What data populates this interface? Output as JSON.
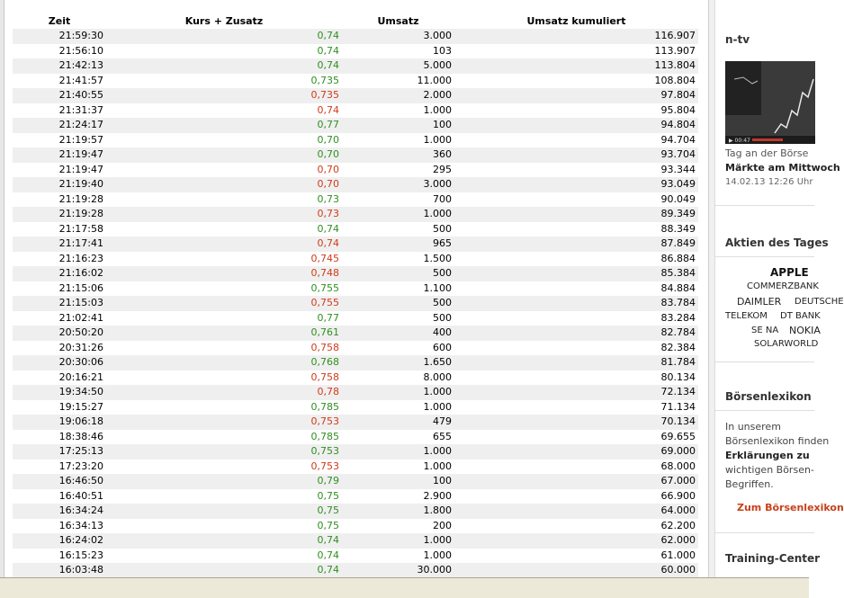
{
  "table": {
    "headers": [
      "Zeit",
      "Kurs + Zusatz",
      "Umsatz",
      "Umsatz kumuliert"
    ],
    "rows": [
      {
        "time": "21:59:30",
        "price": "0,74",
        "dir": "up",
        "volume": "3.000",
        "cumulative": "116.907"
      },
      {
        "time": "21:56:10",
        "price": "0,74",
        "dir": "up",
        "volume": "103",
        "cumulative": "113.907"
      },
      {
        "time": "21:42:13",
        "price": "0,74",
        "dir": "up",
        "volume": "5.000",
        "cumulative": "113.804"
      },
      {
        "time": "21:41:57",
        "price": "0,735",
        "dir": "up",
        "volume": "11.000",
        "cumulative": "108.804"
      },
      {
        "time": "21:40:55",
        "price": "0,735",
        "dir": "down",
        "volume": "2.000",
        "cumulative": "97.804"
      },
      {
        "time": "21:31:37",
        "price": "0,74",
        "dir": "down",
        "volume": "1.000",
        "cumulative": "95.804"
      },
      {
        "time": "21:24:17",
        "price": "0,77",
        "dir": "up",
        "volume": "100",
        "cumulative": "94.804"
      },
      {
        "time": "21:19:57",
        "price": "0,70",
        "dir": "up",
        "volume": "1.000",
        "cumulative": "94.704"
      },
      {
        "time": "21:19:47",
        "price": "0,70",
        "dir": "up",
        "volume": "360",
        "cumulative": "93.704"
      },
      {
        "time": "21:19:47",
        "price": "0,70",
        "dir": "down",
        "volume": "295",
        "cumulative": "93.344"
      },
      {
        "time": "21:19:40",
        "price": "0,70",
        "dir": "down",
        "volume": "3.000",
        "cumulative": "93.049"
      },
      {
        "time": "21:19:28",
        "price": "0,73",
        "dir": "up",
        "volume": "700",
        "cumulative": "90.049"
      },
      {
        "time": "21:19:28",
        "price": "0,73",
        "dir": "down",
        "volume": "1.000",
        "cumulative": "89.349"
      },
      {
        "time": "21:17:58",
        "price": "0,74",
        "dir": "up",
        "volume": "500",
        "cumulative": "88.349"
      },
      {
        "time": "21:17:41",
        "price": "0,74",
        "dir": "down",
        "volume": "965",
        "cumulative": "87.849"
      },
      {
        "time": "21:16:23",
        "price": "0,745",
        "dir": "down",
        "volume": "1.500",
        "cumulative": "86.884"
      },
      {
        "time": "21:16:02",
        "price": "0,748",
        "dir": "down",
        "volume": "500",
        "cumulative": "85.384"
      },
      {
        "time": "21:15:06",
        "price": "0,755",
        "dir": "up",
        "volume": "1.100",
        "cumulative": "84.884"
      },
      {
        "time": "21:15:03",
        "price": "0,755",
        "dir": "down",
        "volume": "500",
        "cumulative": "83.784"
      },
      {
        "time": "21:02:41",
        "price": "0,77",
        "dir": "up",
        "volume": "500",
        "cumulative": "83.284"
      },
      {
        "time": "20:50:20",
        "price": "0,761",
        "dir": "up",
        "volume": "400",
        "cumulative": "82.784"
      },
      {
        "time": "20:31:26",
        "price": "0,758",
        "dir": "down",
        "volume": "600",
        "cumulative": "82.384"
      },
      {
        "time": "20:30:06",
        "price": "0,768",
        "dir": "up",
        "volume": "1.650",
        "cumulative": "81.784"
      },
      {
        "time": "20:16:21",
        "price": "0,758",
        "dir": "down",
        "volume": "8.000",
        "cumulative": "80.134"
      },
      {
        "time": "19:34:50",
        "price": "0,78",
        "dir": "down",
        "volume": "1.000",
        "cumulative": "72.134"
      },
      {
        "time": "19:15:27",
        "price": "0,785",
        "dir": "up",
        "volume": "1.000",
        "cumulative": "71.134"
      },
      {
        "time": "19:06:18",
        "price": "0,753",
        "dir": "down",
        "volume": "479",
        "cumulative": "70.134"
      },
      {
        "time": "18:38:46",
        "price": "0,785",
        "dir": "up",
        "volume": "655",
        "cumulative": "69.655"
      },
      {
        "time": "17:25:13",
        "price": "0,753",
        "dir": "up",
        "volume": "1.000",
        "cumulative": "69.000"
      },
      {
        "time": "17:23:20",
        "price": "0,753",
        "dir": "down",
        "volume": "1.000",
        "cumulative": "68.000"
      },
      {
        "time": "16:46:50",
        "price": "0,79",
        "dir": "up",
        "volume": "100",
        "cumulative": "67.000"
      },
      {
        "time": "16:40:51",
        "price": "0,75",
        "dir": "up",
        "volume": "2.900",
        "cumulative": "66.900"
      },
      {
        "time": "16:34:24",
        "price": "0,75",
        "dir": "up",
        "volume": "1.800",
        "cumulative": "64.000"
      },
      {
        "time": "16:34:13",
        "price": "0,75",
        "dir": "up",
        "volume": "200",
        "cumulative": "62.200"
      },
      {
        "time": "16:24:02",
        "price": "0,74",
        "dir": "up",
        "volume": "1.000",
        "cumulative": "62.000"
      },
      {
        "time": "16:15:23",
        "price": "0,74",
        "dir": "up",
        "volume": "1.000",
        "cumulative": "61.000"
      },
      {
        "time": "16:03:48",
        "price": "0,74",
        "dir": "up",
        "volume": "30.000",
        "cumulative": "60.000"
      }
    ]
  },
  "colors": {
    "up": "#2f8f1f",
    "down": "#d03b1a",
    "row_alt": "#efefef"
  },
  "sidebar": {
    "ntv": {
      "title": "n-tv",
      "video_time": "00:47",
      "caption": "Tag an der Börse",
      "headline": "Märkte am Mittwoch",
      "date": "14.02.13 12:26 Uhr"
    },
    "aktien": {
      "title": "Aktien des Tages",
      "tags": [
        "APPLE",
        "COMMERZBANK",
        "DAIMLER",
        "DEUTSCHE",
        "TELEKOM",
        "DT BANK",
        "SE NA",
        "NOKIA",
        "SOLARWORLD"
      ]
    },
    "lexikon": {
      "title": "Börsenlexikon",
      "lines": [
        "In unserem",
        "Börsenlexikon finden",
        "Erklärungen zu",
        "wichtigen Börsen-",
        "Begriffen."
      ],
      "link": "Zum Börsenlexikon"
    },
    "training": {
      "title": "Training-Center"
    }
  }
}
